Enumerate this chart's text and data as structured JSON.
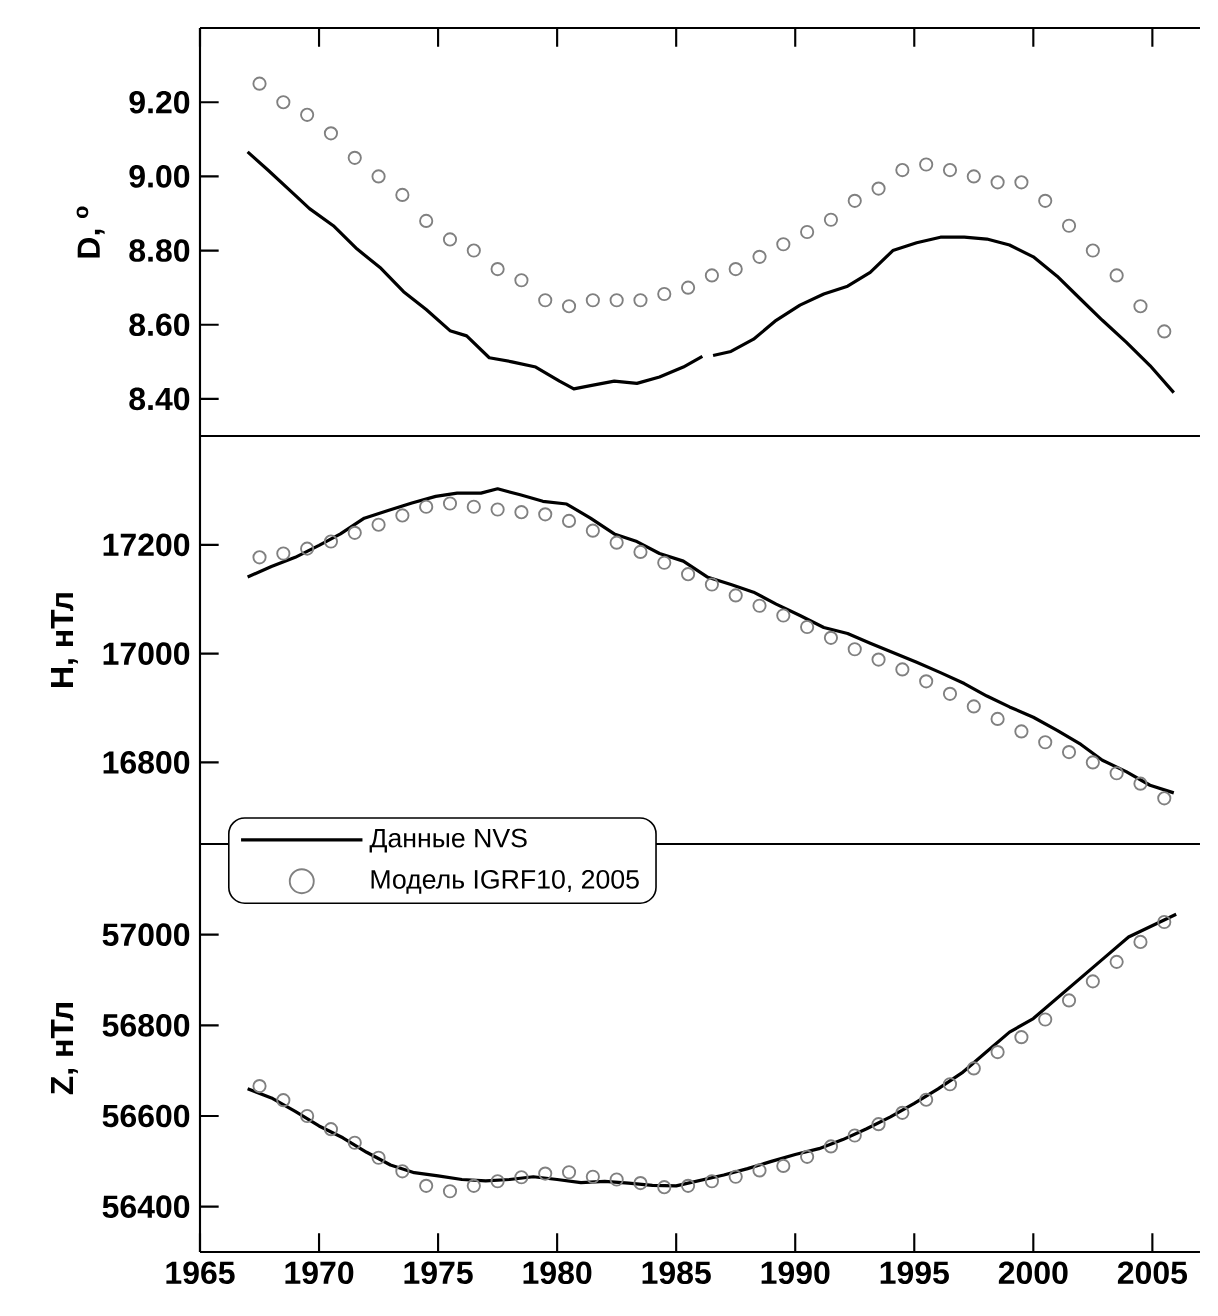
{
  "chart_data": [
    {
      "type": "line",
      "ylabel": "D, $^{o}$",
      "xlim": [
        1965,
        2007
      ],
      "ylim": [
        8.3,
        9.4
      ],
      "xticks": [
        {
          "value": 1965,
          "label": null
        },
        {
          "value": 1970,
          "label": null
        },
        {
          "value": 1975,
          "label": null
        },
        {
          "value": 1980,
          "label": null
        },
        {
          "value": 1985,
          "label": null
        },
        {
          "value": 1990,
          "label": null
        },
        {
          "value": 1995,
          "label": null
        },
        {
          "value": 2000,
          "label": null
        },
        {
          "value": 2005,
          "label": null
        }
      ],
      "yticks": [
        {
          "value": 8.4,
          "label": "8.40"
        },
        {
          "value": 8.6,
          "label": "8.60"
        },
        {
          "value": 8.8,
          "label": "8.80"
        },
        {
          "value": 9.0,
          "label": "9.00"
        },
        {
          "value": 9.2,
          "label": "9.20"
        }
      ],
      "tick_labels": "y",
      "series": [
        {
          "color": "#000000",
          "marker": "none",
          "x": [
            1967.0,
            1967.84,
            1968.98,
            1969.6,
            1970.6,
            1971.6,
            1972.6,
            1973.55,
            1974.5,
            1975.5,
            1976.2,
            1977.15,
            1978.1,
            1979.1,
            1980.1,
            1980.7,
            1981.4,
            1982.4,
            1983.35,
            1984.3,
            1985.3,
            1986.1,
            1986.3,
            1986.55,
            1987.3,
            1988.25,
            1989.2,
            1990.2,
            1991.2,
            1992.2,
            1993.15,
            1994.1,
            1995.1,
            1996.1,
            1997.1,
            1998.05,
            1999.0,
            2000.0,
            2001.0,
            2002.0,
            2002.9,
            2003.9,
            2004.9,
            2005.9
          ],
          "values": [
            9.066,
            9.018,
            8.95,
            8.913,
            8.867,
            8.804,
            8.752,
            8.689,
            8.641,
            8.584,
            8.57,
            8.511,
            8.5,
            8.486,
            8.448,
            8.427,
            8.436,
            8.448,
            8.442,
            8.459,
            8.486,
            8.515,
            null,
            8.517,
            8.528,
            8.561,
            8.612,
            8.653,
            8.683,
            8.704,
            8.741,
            8.8,
            8.821,
            8.836,
            8.836,
            8.831,
            8.815,
            8.783,
            8.731,
            8.668,
            8.612,
            8.553,
            8.49,
            8.417
          ]
        },
        {
          "type": "scatter",
          "color": "#808080",
          "marker": "circle",
          "x": [
            1967.5,
            1968.5,
            1969.5,
            1970.5,
            1971.5,
            1972.5,
            1973.5,
            1974.5,
            1975.5,
            1976.5,
            1977.5,
            1978.5,
            1979.5,
            1980.5,
            1981.5,
            1982.5,
            1983.5,
            1984.5,
            1985.5,
            1986.5,
            1987.5,
            1988.5,
            1989.5,
            1990.5,
            1991.5,
            1992.5,
            1993.5,
            1994.5,
            1995.5,
            1996.5,
            1997.5,
            1998.5,
            1999.5,
            2000.5,
            2001.5,
            2002.5,
            2003.5,
            2004.5,
            2005.5
          ],
          "values": [
            9.25,
            9.2,
            9.166,
            9.116,
            9.05,
            9.0,
            8.95,
            8.88,
            8.83,
            8.8,
            8.75,
            8.72,
            8.666,
            8.65,
            8.666,
            8.666,
            8.666,
            8.683,
            8.7,
            8.733,
            8.75,
            8.783,
            8.817,
            8.85,
            8.883,
            8.934,
            8.967,
            9.017,
            9.032,
            9.017,
            9.0,
            8.984,
            8.984,
            8.934,
            8.867,
            8.8,
            8.733,
            8.65,
            8.582
          ]
        }
      ]
    },
    {
      "type": "line",
      "ylabel": "H, нТл",
      "xlim": [
        1965,
        2007
      ],
      "ylim": [
        16650,
        17400
      ],
      "yticks": [
        16800,
        17000,
        17200
      ],
      "tick_labels": "y",
      "legend": "bottom left",
      "series": [
        {
          "name": "Данные NVS",
          "color": "#000000",
          "marker": "none",
          "x": [
            1967.0,
            1968.0,
            1969.0,
            1970.0,
            1970.9,
            1971.9,
            1972.9,
            1973.9,
            1974.9,
            1975.8,
            1976.8,
            1977.5,
            1978.45,
            1979.4,
            1980.4,
            1981.4,
            1982.4,
            1983.35,
            1984.3,
            1985.3,
            1986.3,
            1987.3,
            1988.25,
            1989.2,
            1990.2,
            1991.2,
            1992.2,
            1993.15,
            1994.1,
            1995.1,
            1996.1,
            1997.1,
            1998.05,
            1999.0,
            2000.0,
            2001.0,
            2002.0,
            2002.9,
            2003.9,
            2004.9,
            2005.9
          ],
          "values": [
            17141,
            17160,
            17177,
            17199,
            17220,
            17249,
            17263,
            17277,
            17289,
            17295,
            17295,
            17303,
            17292,
            17280,
            17275,
            17249,
            17220,
            17206,
            17184,
            17170,
            17141,
            17127,
            17113,
            17091,
            17070,
            17048,
            17037,
            17019,
            17002,
            16984,
            16965,
            16945,
            16922,
            16902,
            16883,
            16859,
            16833,
            16804,
            16783,
            16758,
            16744
          ]
        },
        {
          "type": "scatter",
          "name": "Модель IGRF10, 2005",
          "color": "#808080",
          "marker": "circle",
          "x": [
            1967.5,
            1968.5,
            1969.5,
            1970.5,
            1971.5,
            1972.5,
            1973.5,
            1974.5,
            1975.5,
            1976.5,
            1977.5,
            1978.5,
            1979.5,
            1980.5,
            1981.5,
            1982.5,
            1983.5,
            1984.5,
            1985.5,
            1986.5,
            1987.5,
            1988.5,
            1989.5,
            1990.5,
            1991.5,
            1992.5,
            1993.5,
            1994.5,
            1995.5,
            1996.5,
            1997.5,
            1998.5,
            1999.5,
            2000.5,
            2001.5,
            2002.5,
            2003.5,
            2004.5,
            2005.5
          ],
          "values": [
            17177,
            17184,
            17193,
            17206,
            17222,
            17237,
            17254,
            17270,
            17276,
            17270,
            17265,
            17260,
            17256,
            17244,
            17226,
            17204,
            17187,
            17167,
            17146,
            17127,
            17107,
            17088,
            17070,
            17049,
            17029,
            17008,
            16989,
            16971,
            16949,
            16926,
            16903,
            16880,
            16857,
            16837,
            16819,
            16800,
            16780,
            16761,
            16734
          ]
        }
      ]
    },
    {
      "type": "line",
      "ylabel": "Z, нТл",
      "xlim": [
        1965,
        2007
      ],
      "ylim": [
        56300,
        57200
      ],
      "xticks": [
        1965,
        1970,
        1975,
        1980,
        1985,
        1990,
        1995,
        2000,
        2005
      ],
      "yticks": [
        56400,
        56600,
        56800,
        57000
      ],
      "series": [
        {
          "color": "#000000",
          "marker": "none",
          "x": [
            1967,
            1968,
            1969,
            1970,
            1971,
            1972,
            1973,
            1974,
            1975,
            1976,
            1977,
            1978,
            1979,
            1980,
            1981,
            1982,
            1983,
            1984,
            1985,
            1986,
            1987,
            1988,
            1989,
            1990,
            1991,
            1992,
            1993,
            1994,
            1995,
            1996,
            1997,
            1998,
            1999,
            2000,
            2001,
            2002,
            2003,
            2004,
            2005,
            2006
          ],
          "values": [
            56660,
            56640,
            56610,
            56578,
            56552,
            56520,
            56492,
            56475,
            56468,
            56460,
            56457,
            56460,
            56466,
            56460,
            56453,
            56456,
            56452,
            56447,
            56446,
            56458,
            56470,
            56484,
            56500,
            56515,
            56528,
            56548,
            56572,
            56598,
            56628,
            56660,
            56695,
            56740,
            56785,
            56815,
            56860,
            56905,
            56950,
            56995,
            57020,
            57045
          ]
        },
        {
          "type": "scatter",
          "color": "#808080",
          "marker": "circle",
          "x": [
            1967.5,
            1968.5,
            1969.5,
            1970.5,
            1971.5,
            1972.5,
            1973.5,
            1974.5,
            1975.5,
            1976.5,
            1977.5,
            1978.5,
            1979.5,
            1980.5,
            1981.5,
            1982.5,
            1983.5,
            1984.5,
            1985.5,
            1986.5,
            1987.5,
            1988.5,
            1989.5,
            1990.5,
            1991.5,
            1992.5,
            1993.5,
            1994.5,
            1995.5,
            1996.5,
            1997.5,
            1998.5,
            1999.5,
            2000.5,
            2001.5,
            2002.5,
            2003.5,
            2004.5,
            2005.5
          ],
          "values": [
            56666,
            56635,
            56600,
            56571,
            56541,
            56508,
            56478,
            56446,
            56434,
            56446,
            56456,
            56465,
            56473,
            56476,
            56466,
            56460,
            56452,
            56443,
            56446,
            56456,
            56466,
            56480,
            56490,
            56510,
            56533,
            56557,
            56582,
            56607,
            56636,
            56670,
            56705,
            56741,
            56774,
            56813,
            56855,
            56897,
            56940,
            56984,
            57028
          ]
        }
      ]
    }
  ]
}
